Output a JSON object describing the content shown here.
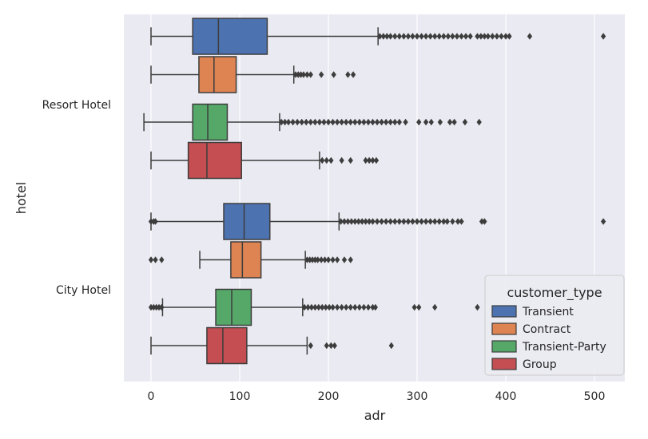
{
  "chart_data": {
    "type": "boxplot",
    "orientation": "horizontal",
    "xlabel": "adr",
    "ylabel": "hotel",
    "xlim": [
      -15,
      525
    ],
    "xticks": [
      0,
      100,
      200,
      300,
      400,
      500
    ],
    "grid": true,
    "categories": [
      "Resort Hotel",
      "City Hotel"
    ],
    "legend": {
      "title": "customer_type",
      "placement": "lower-right",
      "entries": [
        "Transient",
        "Contract",
        "Transient-Party",
        "Group"
      ]
    },
    "series": [
      {
        "name": "Transient",
        "color": "#4c72b0",
        "boxes": [
          {
            "category": "Resort Hotel",
            "whisker_low": 0,
            "q1": 47,
            "median": 76,
            "q3": 131,
            "whisker_high": 256,
            "outliers": [
              258,
              262,
              266,
              270,
              275,
              280,
              285,
              290,
              295,
              300,
              305,
              310,
              315,
              320,
              325,
              330,
              335,
              340,
              345,
              350,
              355,
              360,
              368,
              372,
              376,
              380,
              385,
              390,
              395,
              400,
              404,
              427,
              510
            ]
          },
          {
            "category": "City Hotel",
            "whisker_low": 0,
            "q1": 82,
            "median": 105,
            "q3": 134,
            "whisker_high": 212,
            "outliers": [
              0,
              3,
              5,
              214,
              218,
              222,
              226,
              230,
              234,
              238,
              242,
              246,
              250,
              255,
              260,
              265,
              270,
              275,
              280,
              285,
              290,
              295,
              300,
              305,
              310,
              315,
              320,
              325,
              330,
              334,
              340,
              346,
              350,
              373,
              376,
              510
            ]
          }
        ]
      },
      {
        "name": "Contract",
        "color": "#dd8452",
        "boxes": [
          {
            "category": "Resort Hotel",
            "whisker_low": 0,
            "q1": 54,
            "median": 71,
            "q3": 96,
            "whisker_high": 161,
            "outliers": [
              163,
              166,
              169,
              172,
              176,
              180,
              192,
              206,
              222,
              228
            ]
          },
          {
            "category": "City Hotel",
            "whisker_low": 55,
            "q1": 90,
            "median": 103,
            "q3": 124,
            "whisker_high": 174,
            "outliers": [
              0,
              5,
              12,
              176,
              179,
              182,
              185,
              188,
              192,
              196,
              200,
              205,
              210,
              218,
              225
            ]
          }
        ]
      },
      {
        "name": "Transient-Party",
        "color": "#55a868",
        "boxes": [
          {
            "category": "Resort Hotel",
            "whisker_low": -8,
            "q1": 47,
            "median": 64,
            "q3": 86,
            "whisker_high": 145,
            "outliers": [
              147,
              151,
              155,
              160,
              165,
              170,
              175,
              180,
              185,
              190,
              195,
              200,
              205,
              210,
              215,
              220,
              225,
              230,
              235,
              240,
              245,
              250,
              255,
              260,
              265,
              270,
              275,
              280,
              287,
              302,
              310,
              316,
              326,
              337,
              342,
              354,
              370
            ]
          },
          {
            "category": "City Hotel",
            "whisker_low": 13,
            "q1": 73,
            "median": 91,
            "q3": 113,
            "whisker_high": 171,
            "outliers": [
              0,
              3,
              6,
              9,
              12,
              173,
              177,
              181,
              185,
              189,
              193,
              197,
              201,
              205,
              210,
              215,
              220,
              225,
              230,
              235,
              240,
              245,
              250,
              253,
              297,
              302,
              320,
              368
            ]
          }
        ]
      },
      {
        "name": "Group",
        "color": "#c44e52",
        "boxes": [
          {
            "category": "Resort Hotel",
            "whisker_low": 0,
            "q1": 42,
            "median": 63,
            "q3": 102,
            "whisker_high": 190,
            "outliers": [
              193,
              198,
              203,
              215,
              225,
              242,
              246,
              250,
              254
            ]
          },
          {
            "category": "City Hotel",
            "whisker_low": 0,
            "q1": 63,
            "median": 81,
            "q3": 108,
            "whisker_high": 176,
            "outliers": [
              180,
              198,
              203,
              207,
              271
            ]
          }
        ]
      }
    ]
  }
}
